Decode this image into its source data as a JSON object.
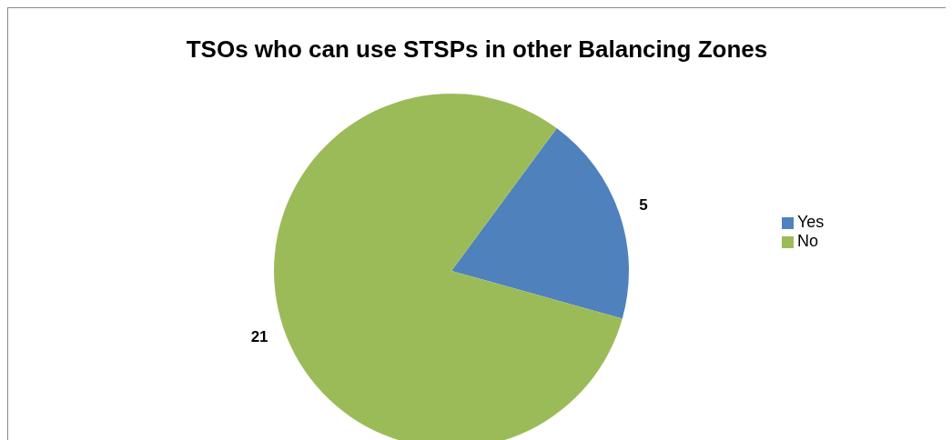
{
  "chart_data": {
    "type": "pie",
    "title": "TSOs who can use STSPs in other Balancing Zones",
    "categories": [
      "Yes",
      "No"
    ],
    "values": [
      5,
      21
    ],
    "colors": [
      "#4f81bd",
      "#9bbb59"
    ],
    "data_labels": true,
    "legend": "right"
  }
}
